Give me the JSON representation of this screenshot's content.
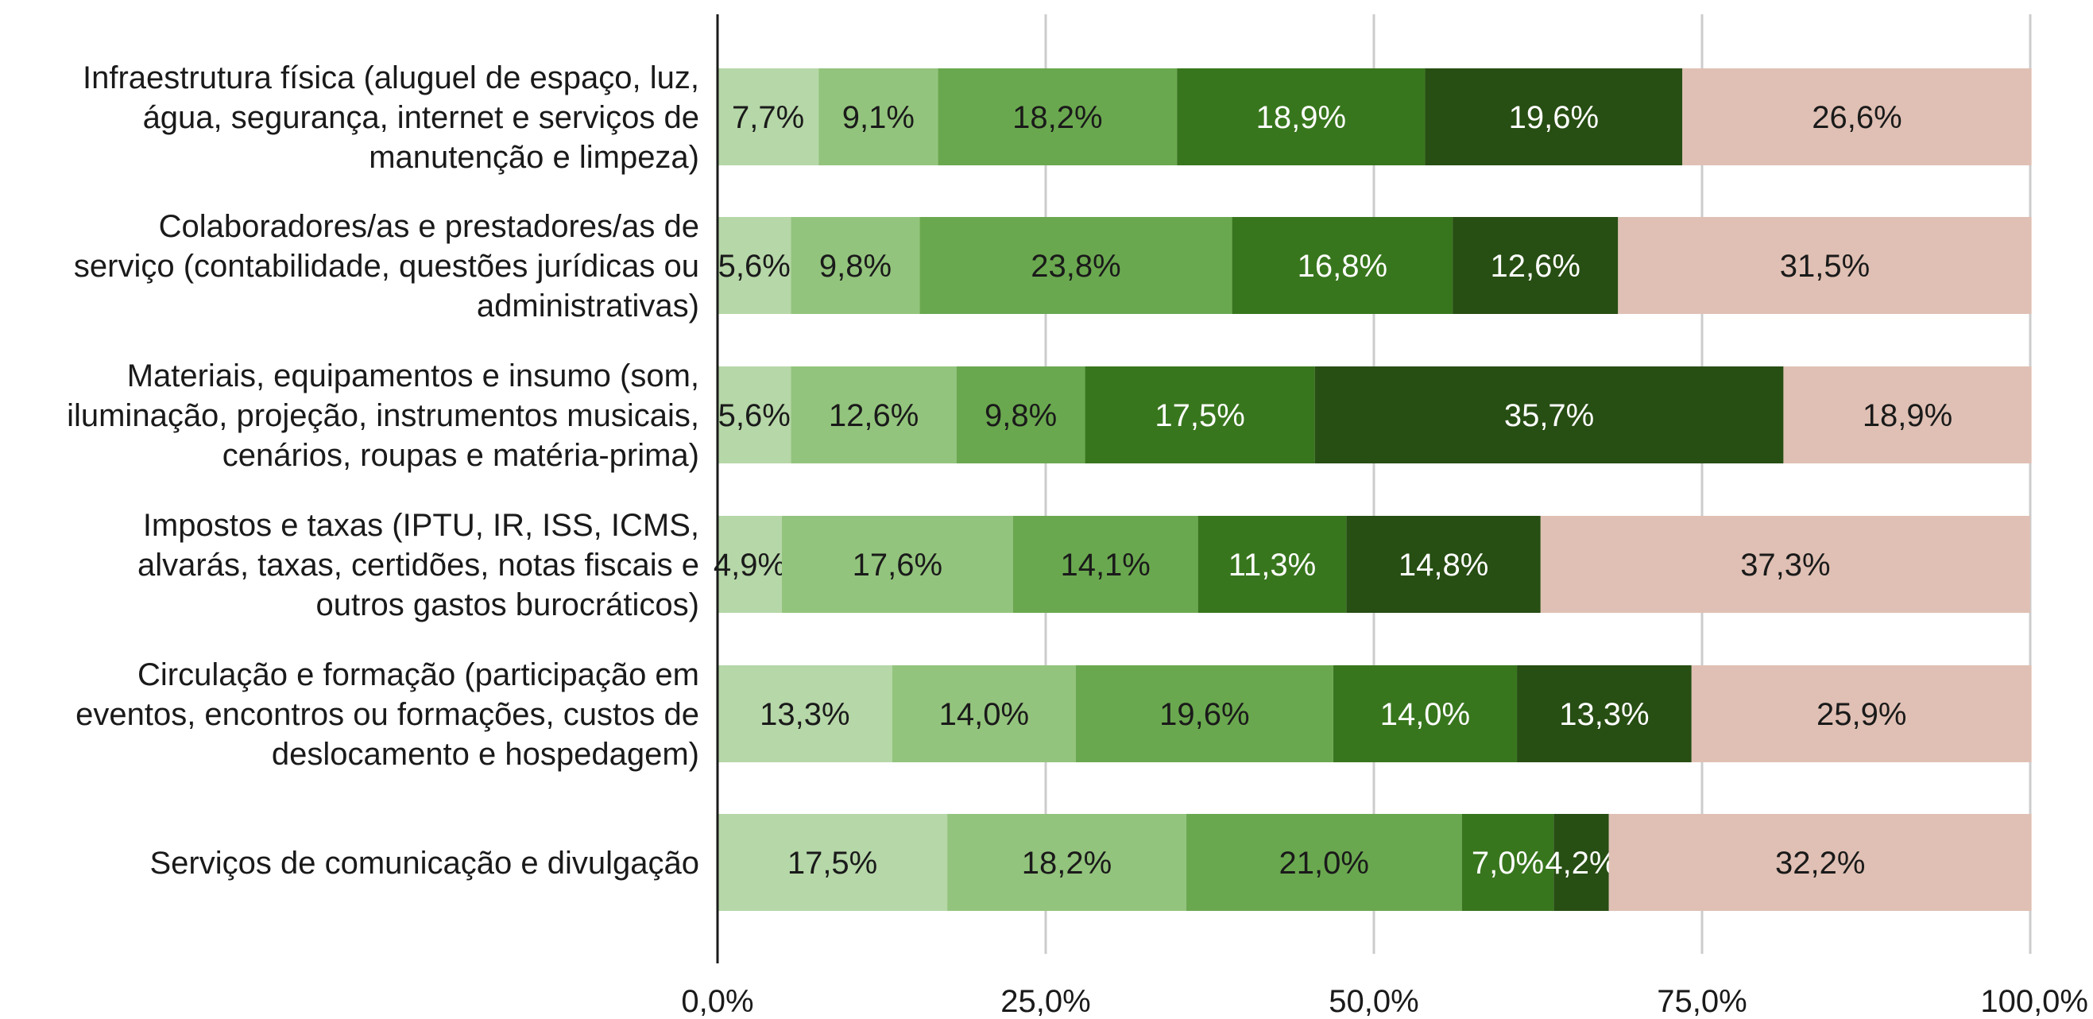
{
  "chart_data": {
    "type": "bar",
    "orientation": "horizontal",
    "stacked": true,
    "title": "",
    "xlabel": "",
    "ylabel": "",
    "xlim": [
      0,
      100
    ],
    "x_ticks": [
      "0,0%",
      "25,0%",
      "50,0%",
      "75,0%",
      "100,0%"
    ],
    "grid": "vertical",
    "legend": "none",
    "categories": [
      [
        "Infraestrutura física (aluguel de espaço, luz,",
        "água, segurança, internet e serviços de",
        "manutenção e limpeza)"
      ],
      [
        "Colaboradores/as e prestadores/as de",
        "serviço (contabilidade, questões jurídicas ou",
        "administrativas)"
      ],
      [
        "Materiais, equipamentos e insumo (som,",
        "iluminação, projeção, instrumentos musicais,",
        "cenários, roupas e matéria-prima)"
      ],
      [
        "Impostos e taxas (IPTU, IR, ISS, ICMS,",
        "alvarás, taxas, certidões, notas fiscais  e",
        "outros gastos burocráticos)"
      ],
      [
        "Circulação e formação (participação em",
        "eventos, encontros ou formações, custos de",
        "deslocamento e hospedagem)"
      ],
      [
        "Serviços de comunicação e divulgação"
      ]
    ],
    "series": [
      {
        "color": "#b6d7a8",
        "label_color": "#1a1a1a",
        "values": [
          7.7,
          5.6,
          5.6,
          4.9,
          13.3,
          17.5
        ],
        "labels": [
          "7,7%",
          "5,6%",
          "5,6%",
          "4,9%",
          "13,3%",
          "17,5%"
        ]
      },
      {
        "color": "#93c47d",
        "label_color": "#1a1a1a",
        "values": [
          9.1,
          9.8,
          12.6,
          17.6,
          14.0,
          18.2
        ],
        "labels": [
          "9,1%",
          "9,8%",
          "12,6%",
          "17,6%",
          "14,0%",
          "18,2%"
        ]
      },
      {
        "color": "#6aa84f",
        "label_color": "#1a1a1a",
        "values": [
          18.2,
          23.8,
          9.8,
          14.1,
          19.6,
          21.0
        ],
        "labels": [
          "18,2%",
          "23,8%",
          "9,8%",
          "14,1%",
          "19,6%",
          "21,0%"
        ]
      },
      {
        "color": "#38761d",
        "label_color": "#ffffff",
        "values": [
          18.9,
          16.8,
          17.5,
          11.3,
          14.0,
          7.0
        ],
        "labels": [
          "18,9%",
          "16,8%",
          "17,5%",
          "11,3%",
          "14,0%",
          "7,0%"
        ]
      },
      {
        "color": "#274e13",
        "label_color": "#ffffff",
        "values": [
          19.6,
          12.6,
          35.7,
          14.8,
          13.3,
          4.2
        ],
        "labels": [
          "19,6%",
          "12,6%",
          "35,7%",
          "14,8%",
          "13,3%",
          "4,2%"
        ]
      },
      {
        "color": "#e0c0b4",
        "label_color": "#1a1a1a",
        "values": [
          26.6,
          31.5,
          18.9,
          37.3,
          25.9,
          32.2
        ],
        "labels": [
          "26,6%",
          "31,5%",
          "18,9%",
          "37,3%",
          "25,9%",
          "32,2%"
        ]
      }
    ]
  }
}
